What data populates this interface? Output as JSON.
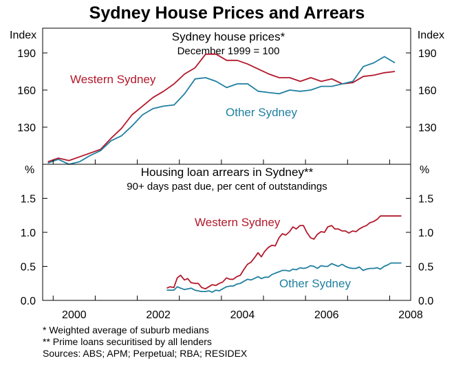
{
  "chart_data": {
    "title": "Sydney House Prices and Arrears",
    "type": "line",
    "x_ticks": [
      "2000",
      "2002",
      "2004",
      "2006",
      "2008"
    ],
    "x_range": [
      1999.75,
      2008.5
    ],
    "panels": [
      {
        "title": "Sydney house prices*",
        "subtitle": "December 1999 = 100",
        "unit": "Index",
        "ylim": [
          100,
          210
        ],
        "y_ticks": [
          "130",
          "160",
          "190"
        ],
        "y_tick_values": [
          130,
          160,
          190
        ],
        "series": [
          {
            "name": "Western Sydney",
            "color": "#b2182b",
            "x": [
              1999.875,
              2000.125,
              2000.375,
              2000.625,
              2000.875,
              2001.125,
              2001.375,
              2001.625,
              2001.875,
              2002.125,
              2002.375,
              2002.625,
              2002.875,
              2003.125,
              2003.375,
              2003.625,
              2003.875,
              2004.125,
              2004.375,
              2004.625,
              2004.875,
              2005.125,
              2005.375,
              2005.625,
              2005.875,
              2006.125,
              2006.375,
              2006.625,
              2006.875,
              2007.125,
              2007.375,
              2007.625,
              2007.875,
              2008.125
            ],
            "values": [
              102,
              105,
              103,
              106,
              109,
              112,
              121,
              129,
              140,
              147,
              154,
              159,
              165,
              173,
              178,
              189,
              189,
              184,
              184,
              181,
              177,
              173,
              170,
              170,
              167,
              170,
              167,
              169,
              165,
              166,
              171,
              172,
              174,
              175
            ]
          },
          {
            "name": "Other Sydney",
            "color": "#1f7f9f",
            "x": [
              1999.875,
              2000.125,
              2000.375,
              2000.625,
              2000.875,
              2001.125,
              2001.375,
              2001.625,
              2001.875,
              2002.125,
              2002.375,
              2002.625,
              2002.875,
              2003.125,
              2003.375,
              2003.625,
              2003.875,
              2004.125,
              2004.375,
              2004.625,
              2004.875,
              2005.125,
              2005.375,
              2005.625,
              2005.875,
              2006.125,
              2006.375,
              2006.625,
              2006.875,
              2007.125,
              2007.375,
              2007.625,
              2007.875,
              2008.125
            ],
            "values": [
              101,
              104,
              100,
              102,
              107,
              111,
              119,
              123,
              131,
              140,
              145,
              147,
              148,
              157,
              169,
              170,
              167,
              162,
              165,
              165,
              159,
              158,
              157,
              160,
              159,
              160,
              163,
              163,
              165,
              167,
              179,
              182,
              187,
              182
            ]
          }
        ]
      },
      {
        "title": "Housing loan arrears in Sydney**",
        "subtitle": "90+ days past due, per cent of outstandings",
        "unit": "%",
        "ylim": [
          0,
          2.0
        ],
        "y_ticks": [
          "0.0",
          "0.5",
          "1.0",
          "1.5"
        ],
        "y_tick_values": [
          0,
          0.5,
          1.0,
          1.5
        ],
        "series": [
          {
            "name": "Western Sydney",
            "color": "#b2182b",
            "x": [
              2002.7,
              2002.78,
              2002.87,
              2002.95,
              2003.03,
              2003.12,
              2003.2,
              2003.28,
              2003.37,
              2003.45,
              2003.53,
              2003.62,
              2003.7,
              2003.78,
              2003.87,
              2003.95,
              2004.03,
              2004.12,
              2004.2,
              2004.28,
              2004.37,
              2004.45,
              2004.53,
              2004.62,
              2004.7,
              2004.78,
              2004.87,
              2004.95,
              2005.03,
              2005.12,
              2005.2,
              2005.28,
              2005.37,
              2005.45,
              2005.53,
              2005.62,
              2005.7,
              2005.78,
              2005.87,
              2005.95,
              2006.03,
              2006.12,
              2006.2,
              2006.28,
              2006.37,
              2006.45,
              2006.53,
              2006.62,
              2006.7,
              2006.78,
              2006.87,
              2006.95,
              2007.03,
              2007.12,
              2007.2,
              2007.28,
              2007.37,
              2007.45,
              2007.53,
              2007.62,
              2007.7,
              2007.78,
              2007.87,
              2007.95,
              2008.03,
              2008.12,
              2008.2,
              2008.28
            ],
            "values": [
              0.18,
              0.2,
              0.19,
              0.33,
              0.37,
              0.3,
              0.32,
              0.26,
              0.25,
              0.25,
              0.19,
              0.17,
              0.2,
              0.23,
              0.22,
              0.25,
              0.27,
              0.33,
              0.31,
              0.31,
              0.35,
              0.37,
              0.45,
              0.53,
              0.56,
              0.62,
              0.7,
              0.64,
              0.72,
              0.78,
              0.81,
              0.8,
              0.92,
              0.98,
              0.96,
              1.01,
              1.08,
              1.05,
              1.1,
              1.1,
              1.0,
              0.92,
              0.9,
              0.97,
              1.01,
              1.0,
              1.08,
              1.1,
              1.05,
              1.05,
              1.02,
              1.02,
              0.99,
              1.02,
              1.01,
              1.05,
              1.08,
              1.1,
              1.14,
              1.16,
              1.19,
              1.24,
              1.24,
              1.24,
              1.24,
              1.24,
              1.24,
              1.24
            ]
          },
          {
            "name": "Other Sydney",
            "color": "#1f7f9f",
            "x": [
              2002.7,
              2002.78,
              2002.87,
              2002.95,
              2003.03,
              2003.12,
              2003.2,
              2003.28,
              2003.37,
              2003.45,
              2003.53,
              2003.62,
              2003.7,
              2003.78,
              2003.87,
              2003.95,
              2004.03,
              2004.12,
              2004.2,
              2004.28,
              2004.37,
              2004.45,
              2004.53,
              2004.62,
              2004.7,
              2004.78,
              2004.87,
              2004.95,
              2005.03,
              2005.12,
              2005.2,
              2005.28,
              2005.37,
              2005.45,
              2005.53,
              2005.62,
              2005.7,
              2005.78,
              2005.87,
              2005.95,
              2006.03,
              2006.12,
              2006.2,
              2006.28,
              2006.37,
              2006.45,
              2006.53,
              2006.62,
              2006.7,
              2006.78,
              2006.87,
              2006.95,
              2007.03,
              2007.12,
              2007.2,
              2007.28,
              2007.37,
              2007.45,
              2007.53,
              2007.62,
              2007.7,
              2007.78,
              2007.87,
              2007.95,
              2008.03,
              2008.12,
              2008.2,
              2008.28
            ],
            "values": [
              0.15,
              0.15,
              0.15,
              0.2,
              0.18,
              0.16,
              0.17,
              0.18,
              0.15,
              0.14,
              0.13,
              0.13,
              0.14,
              0.12,
              0.15,
              0.14,
              0.17,
              0.2,
              0.21,
              0.21,
              0.24,
              0.25,
              0.28,
              0.31,
              0.3,
              0.32,
              0.35,
              0.32,
              0.34,
              0.34,
              0.38,
              0.4,
              0.42,
              0.44,
              0.44,
              0.43,
              0.46,
              0.45,
              0.48,
              0.47,
              0.48,
              0.51,
              0.5,
              0.47,
              0.51,
              0.5,
              0.5,
              0.54,
              0.52,
              0.5,
              0.53,
              0.5,
              0.48,
              0.47,
              0.47,
              0.49,
              0.44,
              0.46,
              0.47,
              0.47,
              0.48,
              0.46,
              0.5,
              0.52,
              0.55,
              0.55,
              0.55,
              0.55
            ]
          }
        ]
      }
    ],
    "notes": [
      "*    Weighted average of suburb medians",
      "**  Prime loans securitised by all lenders",
      "Sources: ABS; APM; Perpetual; RBA; RESIDEX"
    ]
  }
}
